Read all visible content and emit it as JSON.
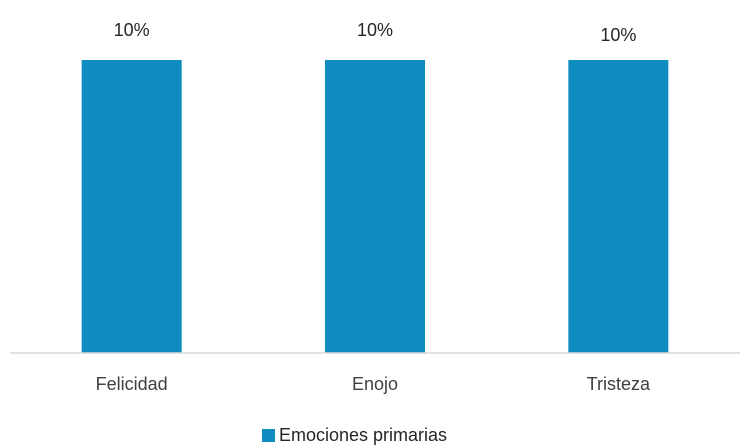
{
  "chart_data": {
    "type": "bar",
    "categories": [
      "Felicidad",
      "Enojo",
      "Tristeza"
    ],
    "series": [
      {
        "name": "Emociones primarias",
        "values": [
          10,
          10,
          10
        ],
        "labels": [
          "10%",
          "10%",
          "10%"
        ],
        "color": "#0e8bbf"
      }
    ],
    "ylim": [
      0,
      10
    ],
    "grid": false,
    "legend": "bottom",
    "axis_color": "#d9d9d9"
  }
}
